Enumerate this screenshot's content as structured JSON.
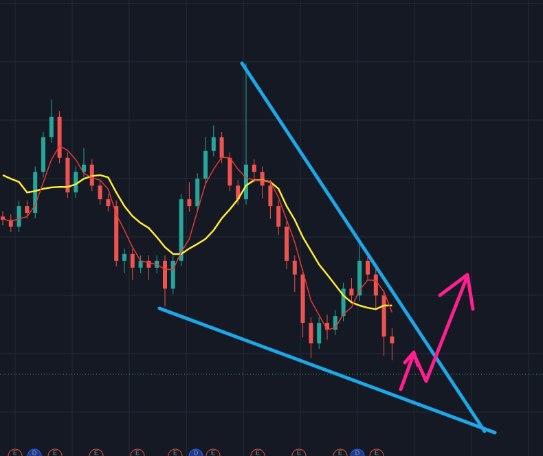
{
  "chart_data": {
    "type": "candlestick",
    "categories": [
      null,
      null,
      null,
      null,
      null,
      null,
      null,
      null,
      null,
      null,
      null,
      null,
      null,
      null,
      null,
      null,
      null,
      null,
      null,
      null,
      null,
      null,
      null,
      null,
      null,
      null,
      null,
      null,
      null,
      null,
      null,
      null,
      null,
      null,
      null,
      null,
      null,
      null,
      null,
      null,
      null,
      null,
      null,
      null,
      null,
      null,
      null,
      null,
      null
    ],
    "open": [
      52.5,
      51.8,
      50.3,
      54.8,
      53.3,
      62.3,
      69.9,
      74.4,
      65.4,
      57.8,
      62.3,
      63.9,
      59.3,
      56.3,
      54.8,
      42.8,
      44.3,
      41.3,
      42.8,
      41.3,
      42.8,
      36.7,
      42.8,
      56.3,
      54.8,
      60.8,
      66.9,
      69.9,
      65.4,
      59.3,
      56.3,
      63.9,
      62.3,
      59.3,
      54.8,
      50.3,
      42.8,
      39.8,
      29.2,
      24.7,
      29.2,
      27.7,
      30.7,
      36.7,
      35.2,
      42.8,
      39.8,
      35.2,
      26.2
    ],
    "high": [
      53.7,
      53.0,
      56.0,
      56.0,
      63.5,
      71.1,
      78.2,
      75.6,
      66.6,
      63.5,
      67.5,
      65.1,
      60.5,
      57.5,
      56.0,
      45.5,
      45.5,
      44.0,
      44.0,
      44.0,
      44.0,
      44.0,
      57.5,
      60.0,
      62.0,
      70.0,
      72.5,
      71.1,
      66.6,
      60.5,
      86.1,
      65.1,
      63.5,
      60.5,
      56.0,
      51.5,
      44.0,
      41.0,
      30.4,
      30.4,
      31.0,
      32.0,
      38.0,
      39.0,
      47.3,
      44.0,
      41.0,
      36.4,
      28.0
    ],
    "low": [
      50.6,
      49.1,
      49.1,
      52.1,
      52.1,
      61.1,
      68.7,
      64.2,
      56.6,
      56.6,
      61.1,
      58.1,
      55.1,
      53.6,
      41.6,
      40.1,
      38.6,
      40.1,
      38.6,
      40.1,
      32.8,
      35.5,
      41.6,
      53.6,
      53.6,
      59.6,
      65.7,
      64.2,
      58.1,
      55.1,
      55.1,
      60.0,
      56.5,
      52.0,
      48.5,
      41.0,
      36.0,
      26.0,
      21.5,
      23.5,
      25.5,
      26.5,
      29.5,
      34.0,
      34.0,
      38.6,
      32.0,
      22.0,
      21.0
    ],
    "close": [
      51.8,
      50.3,
      54.8,
      53.3,
      62.3,
      69.9,
      74.4,
      65.4,
      57.8,
      62.3,
      63.9,
      59.3,
      56.3,
      54.8,
      42.8,
      44.3,
      41.3,
      42.8,
      41.3,
      42.8,
      36.7,
      42.8,
      56.3,
      54.8,
      60.8,
      66.9,
      69.9,
      65.4,
      59.3,
      56.3,
      63.9,
      62.3,
      59.3,
      54.8,
      50.3,
      42.8,
      39.8,
      29.2,
      24.7,
      29.2,
      27.7,
      30.7,
      36.7,
      35.2,
      42.8,
      39.8,
      35.2,
      26.2,
      24.7
    ],
    "up_color": "#26a69a",
    "down_color": "#ef5350",
    "series": [
      {
        "color": "#ffeb3b",
        "values": [
          61.6,
          60.8,
          60.1,
          57.8,
          58.1,
          58.6,
          58.9,
          59.0,
          59.0,
          59.6,
          60.8,
          61.4,
          61.6,
          61.1,
          57.8,
          54.8,
          52.6,
          51.1,
          50.0,
          48.0,
          45.8,
          44.3,
          44.3,
          45.5,
          46.5,
          47.6,
          49.5,
          52.1,
          54.1,
          56.3,
          59.3,
          60.5,
          60.5,
          60.1,
          58.6,
          54.8,
          51.8,
          48.0,
          45.0,
          42.0,
          39.8,
          37.5,
          35.2,
          33.7,
          33.0,
          32.5,
          32.2,
          33.0,
          33.0
        ]
      },
      {
        "color": "#e53935",
        "values": [
          52,
          51.5,
          52,
          52.5,
          55,
          60,
          65,
          68,
          67,
          65,
          62,
          61,
          60.5,
          58.5,
          53,
          49.5,
          45.8,
          42.8,
          42.4,
          42,
          40.9,
          40.9,
          44.7,
          47.6,
          53.7,
          59.7,
          62.9,
          65.5,
          65.4,
          62.9,
          61,
          60.5,
          60.5,
          60.1,
          56.7,
          51.8,
          46.9,
          40.5,
          34.1,
          30.9,
          27.7,
          28.1,
          31.1,
          32.6,
          36.4,
          38.6,
          38.5,
          36,
          31.5
        ]
      }
    ],
    "ylim": [
      0,
      100
    ],
    "events": [
      "E",
      "D",
      "E",
      "E",
      "E",
      "E",
      "D",
      "E",
      "E",
      "E",
      "E",
      "D",
      "E"
    ]
  }
}
